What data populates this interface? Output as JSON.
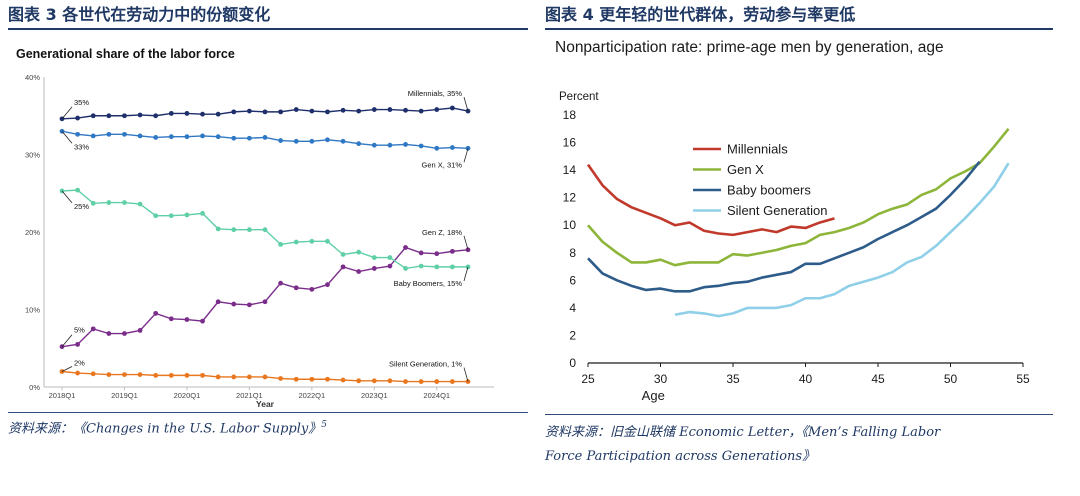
{
  "left": {
    "figure_title": "图表 3   各世代在劳动力中的份额变化",
    "source": "资料来源：《Changes in the U.S. Labor Supply》",
    "source_sup": "5",
    "chart_data": {
      "type": "line",
      "title": "Generational share of the labor force",
      "xlabel": "Year",
      "ylabel": "",
      "ylim": [
        0,
        40
      ],
      "yticks": [
        0,
        10,
        20,
        30,
        40
      ],
      "ytick_labels": [
        "0%",
        "10%",
        "20%",
        "30%",
        "40%"
      ],
      "x_count": 27,
      "xticks": [
        0,
        4,
        8,
        12,
        16,
        20,
        24
      ],
      "xtick_labels": [
        "2018Q1",
        "2019Q1",
        "2020Q1",
        "2021Q1",
        "2022Q1",
        "2023Q1",
        "2024Q1"
      ],
      "series": [
        {
          "name": "Millennials",
          "color": "#1f2f6b",
          "values": [
            34.6,
            34.7,
            35.0,
            35.0,
            35.0,
            35.1,
            35.0,
            35.3,
            35.3,
            35.2,
            35.2,
            35.5,
            35.6,
            35.5,
            35.5,
            35.8,
            35.6,
            35.5,
            35.7,
            35.6,
            35.8,
            35.8,
            35.7,
            35.6,
            35.8,
            36.0,
            35.6
          ]
        },
        {
          "name": "Gen X",
          "color": "#2f78c4",
          "values": [
            33.0,
            32.6,
            32.4,
            32.6,
            32.6,
            32.4,
            32.2,
            32.3,
            32.3,
            32.4,
            32.3,
            32.1,
            32.1,
            32.2,
            31.8,
            31.7,
            31.7,
            31.9,
            31.7,
            31.4,
            31.2,
            31.2,
            31.3,
            31.1,
            30.8,
            30.9,
            30.8
          ]
        },
        {
          "name": "Gen Z",
          "color": "#7b2d8b",
          "values": [
            5.2,
            5.5,
            7.5,
            6.9,
            6.9,
            7.3,
            9.5,
            8.8,
            8.7,
            8.5,
            11.0,
            10.7,
            10.6,
            11.0,
            13.4,
            12.8,
            12.6,
            13.2,
            15.5,
            14.9,
            15.3,
            15.6,
            18.0,
            17.3,
            17.2,
            17.5,
            17.7
          ]
        },
        {
          "name": "Baby Boomers",
          "color": "#5fcfa6",
          "values": [
            25.3,
            25.4,
            23.7,
            23.8,
            23.8,
            23.6,
            22.1,
            22.1,
            22.2,
            22.4,
            20.4,
            20.3,
            20.3,
            20.3,
            18.4,
            18.7,
            18.8,
            18.8,
            17.1,
            17.4,
            16.7,
            16.7,
            15.3,
            15.6,
            15.5,
            15.5,
            15.5
          ]
        },
        {
          "name": "Silent Generation",
          "color": "#e8771f",
          "values": [
            2.0,
            1.8,
            1.7,
            1.6,
            1.6,
            1.6,
            1.5,
            1.5,
            1.5,
            1.5,
            1.3,
            1.3,
            1.3,
            1.3,
            1.1,
            1.0,
            1.0,
            1.0,
            0.9,
            0.8,
            0.8,
            0.8,
            0.7,
            0.7,
            0.7,
            0.7,
            0.7
          ]
        }
      ],
      "annotations": [
        {
          "text": "35%",
          "series": 0,
          "index": 0,
          "pos": "above"
        },
        {
          "text": "Millennials, 35%",
          "series": 0,
          "index": 26,
          "pos": "above-end"
        },
        {
          "text": "33%",
          "series": 1,
          "index": 0,
          "pos": "below"
        },
        {
          "text": "Gen X, 31%",
          "series": 1,
          "index": 26,
          "pos": "below-end"
        },
        {
          "text": "25%",
          "series": 3,
          "index": 0,
          "pos": "below"
        },
        {
          "text": "Gen Z, 18%",
          "series": 2,
          "index": 26,
          "pos": "above-end"
        },
        {
          "text": "Baby Boomers, 15%",
          "series": 3,
          "index": 26,
          "pos": "below-end"
        },
        {
          "text": "5%",
          "series": 2,
          "index": 0,
          "pos": "above"
        },
        {
          "text": "2%",
          "series": 4,
          "index": 0,
          "pos": "above-right"
        },
        {
          "text": "Silent Generation, 1%",
          "series": 4,
          "index": 26,
          "pos": "above-end"
        }
      ]
    }
  },
  "right": {
    "figure_title": "图表 4   更年轻的世代群体，劳动参与率更低",
    "source_line1": "资料来源：旧金山联储 Economic Letter，《Men’s Falling Labor",
    "source_line2": "Force Participation across Generations》",
    "chart_data": {
      "type": "line",
      "title": "Nonparticipation rate: prime-age men by generation, age",
      "xlabel": "Age",
      "ylabel": "Percent",
      "xlim": [
        25,
        55
      ],
      "ylim": [
        0,
        18
      ],
      "xticks": [
        25,
        30,
        35,
        40,
        45,
        50,
        55
      ],
      "yticks": [
        0,
        2,
        4,
        6,
        8,
        10,
        12,
        14,
        16,
        18
      ],
      "series": [
        {
          "name": "Millennials",
          "color": "#c0392b",
          "x_start": 25,
          "values": [
            14.4,
            12.9,
            11.9,
            11.3,
            10.9,
            10.5,
            10.0,
            10.2,
            9.6,
            9.4,
            9.3,
            9.5,
            9.7,
            9.5,
            9.9,
            9.8,
            10.2,
            10.5
          ]
        },
        {
          "name": "Gen X",
          "color": "#8db53a",
          "x_start": 25,
          "values": [
            10.0,
            8.8,
            8.0,
            7.3,
            7.3,
            7.5,
            7.1,
            7.3,
            7.3,
            7.3,
            7.9,
            7.8,
            8.0,
            8.2,
            8.5,
            8.7,
            9.3,
            9.5,
            9.8,
            10.2,
            10.8,
            11.2,
            11.5,
            12.2,
            12.6,
            13.4,
            13.9,
            14.5,
            15.7,
            17.0
          ]
        },
        {
          "name": "Baby boomers",
          "color": "#2e5c8a",
          "x_start": 25,
          "values": [
            7.6,
            6.5,
            6.0,
            5.6,
            5.3,
            5.4,
            5.2,
            5.2,
            5.5,
            5.6,
            5.8,
            5.9,
            6.2,
            6.4,
            6.6,
            7.2,
            7.2,
            7.6,
            8.0,
            8.4,
            9.0,
            9.5,
            10.0,
            10.6,
            11.2,
            12.2,
            13.3,
            14.6
          ]
        },
        {
          "name": "Silent Generation",
          "color": "#8fcfe8",
          "x_start": 31,
          "values": [
            3.5,
            3.7,
            3.6,
            3.4,
            3.6,
            4.0,
            4.0,
            4.0,
            4.2,
            4.7,
            4.7,
            5.0,
            5.6,
            5.9,
            6.2,
            6.6,
            7.3,
            7.7,
            8.5,
            9.5,
            10.5,
            11.6,
            12.8,
            14.5
          ]
        }
      ]
    }
  }
}
